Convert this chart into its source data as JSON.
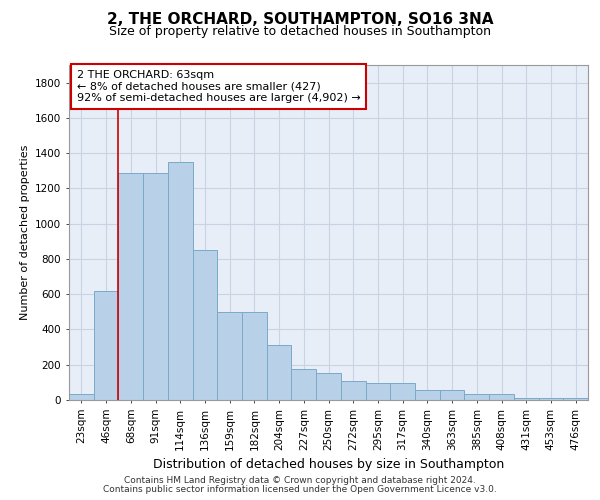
{
  "title1": "2, THE ORCHARD, SOUTHAMPTON, SO16 3NA",
  "title2": "Size of property relative to detached houses in Southampton",
  "xlabel": "Distribution of detached houses by size in Southampton",
  "ylabel": "Number of detached properties",
  "categories": [
    "23sqm",
    "46sqm",
    "68sqm",
    "91sqm",
    "114sqm",
    "136sqm",
    "159sqm",
    "182sqm",
    "204sqm",
    "227sqm",
    "250sqm",
    "272sqm",
    "295sqm",
    "317sqm",
    "340sqm",
    "363sqm",
    "385sqm",
    "408sqm",
    "431sqm",
    "453sqm",
    "476sqm"
  ],
  "values": [
    35,
    620,
    1290,
    1290,
    1350,
    850,
    500,
    500,
    310,
    175,
    155,
    110,
    95,
    95,
    55,
    55,
    35,
    35,
    10,
    10,
    10
  ],
  "bar_color": "#b8d0e8",
  "bar_edge_color": "#7aaac8",
  "grid_color": "#c8d4e4",
  "bg_color": "#e8eef8",
  "vline_color": "#cc0000",
  "vline_x_index": 1,
  "annotation_text": "2 THE ORCHARD: 63sqm\n← 8% of detached houses are smaller (427)\n92% of semi-detached houses are larger (4,902) →",
  "footer1": "Contains HM Land Registry data © Crown copyright and database right 2024.",
  "footer2": "Contains public sector information licensed under the Open Government Licence v3.0.",
  "ylim": [
    0,
    1900
  ],
  "yticks": [
    0,
    200,
    400,
    600,
    800,
    1000,
    1200,
    1400,
    1600,
    1800
  ],
  "title1_fontsize": 11,
  "title2_fontsize": 9,
  "ylabel_fontsize": 8,
  "xlabel_fontsize": 9,
  "tick_fontsize": 7.5,
  "ann_fontsize": 8,
  "footer_fontsize": 6.5
}
